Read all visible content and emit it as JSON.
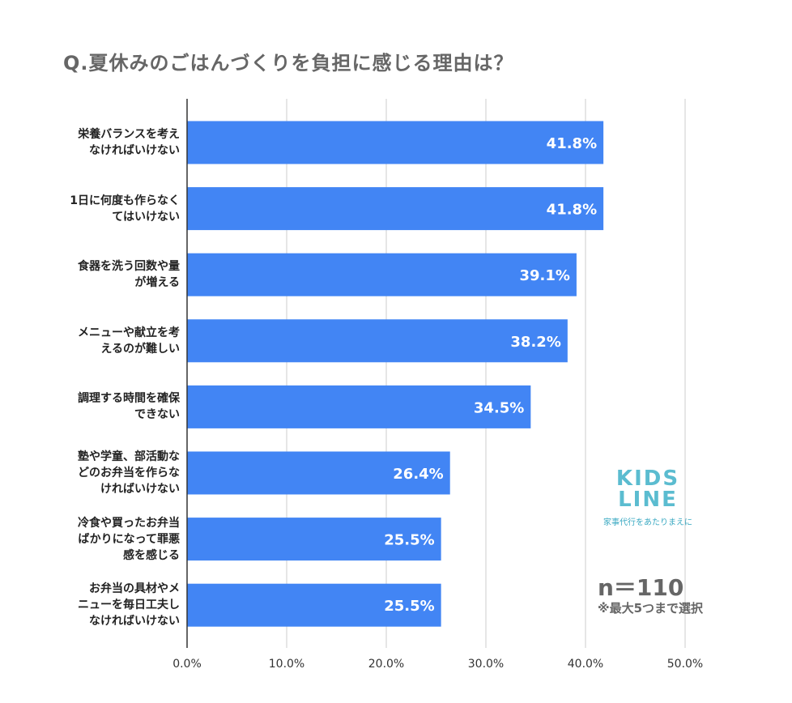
{
  "chart_data": {
    "type": "bar",
    "orientation": "horizontal",
    "title": "Q.夏休みのごはんづくりを負担に感じる理由は？",
    "categories": [
      [
        "栄養バランスを考え",
        "なければいけない"
      ],
      [
        "1日に何度も作らなく",
        "てはいけない"
      ],
      [
        "食器を洗う回数や量",
        "が増える"
      ],
      [
        "メニューや献立を考",
        "えるのが難しい"
      ],
      [
        "調理する時間を確保",
        "できない"
      ],
      [
        "塾や学童、部活動な",
        "どのお弁当を作らな",
        "ければいけない"
      ],
      [
        "冷食や買ったお弁当",
        "ばかりになって罪悪",
        "感を感じる"
      ],
      [
        "お弁当の具材やメ",
        "ニューを毎日工夫し",
        "なければいけない"
      ]
    ],
    "values": [
      41.8,
      41.8,
      39.1,
      38.2,
      34.5,
      26.4,
      25.5,
      25.5
    ],
    "data_labels": [
      "41.8%",
      "41.8%",
      "39.1%",
      "38.2%",
      "34.5%",
      "26.4%",
      "25.5%",
      "25.5%"
    ],
    "xlim": [
      0,
      50
    ],
    "x_ticks": [
      "0.0%",
      "10.0%",
      "20.0%",
      "30.0%",
      "40.0%",
      "50.0%"
    ],
    "grid": true,
    "bar_color": "#4285f4"
  },
  "annotations": {
    "n": "n＝110",
    "note": "※最大5つまで選択"
  },
  "logo": {
    "text": "KIDS LINE",
    "tagline": "家事代行をあたりまえに"
  }
}
